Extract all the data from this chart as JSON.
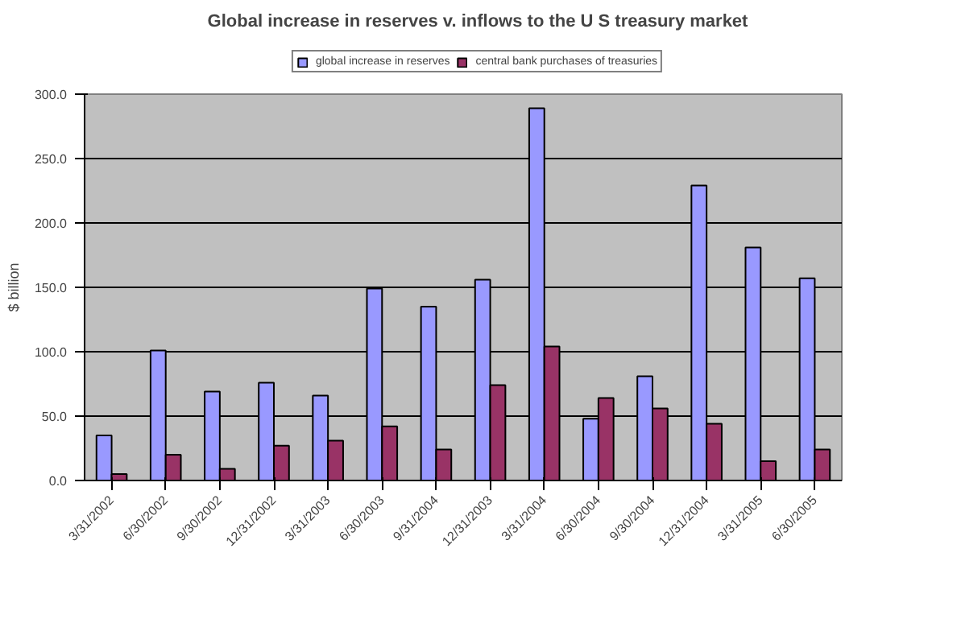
{
  "chart_data": {
    "type": "bar",
    "title": "Global increase in reserves v. inflows to the U S treasury market",
    "ylabel": "$ billion",
    "categories": [
      "3/31/2002",
      "6/30/2002",
      "9/30/2002",
      "12/31/2002",
      "3/31/2003",
      "6/30/2003",
      "9/31/2004",
      "12/31/2003",
      "3/31/2004",
      "6/30/2004",
      "9/30/2004",
      "12/31/2004",
      "3/31/2005",
      "6/30/2005"
    ],
    "series": [
      {
        "name": "global increase in reserves",
        "color": "#9999ff",
        "values": [
          35,
          101,
          69,
          76,
          66,
          149,
          135,
          156,
          289,
          48,
          81,
          229,
          181,
          157
        ]
      },
      {
        "name": "central bank purchases of treasuries",
        "color": "#993366",
        "values": [
          5,
          20,
          9,
          27,
          31,
          42,
          24,
          74,
          104,
          64,
          56,
          44,
          15,
          24
        ]
      }
    ],
    "ylim": [
      0,
      300
    ],
    "yticks": [
      {
        "value": 0,
        "label": "0.0"
      },
      {
        "value": 50,
        "label": "50.0"
      },
      {
        "value": 100,
        "label": "100.0"
      },
      {
        "value": 150,
        "label": "150.0"
      },
      {
        "value": 200,
        "label": "200.0"
      },
      {
        "value": 250,
        "label": "250.0"
      },
      {
        "value": 300,
        "label": "300.0"
      }
    ],
    "grid": "y",
    "legend": "top"
  }
}
